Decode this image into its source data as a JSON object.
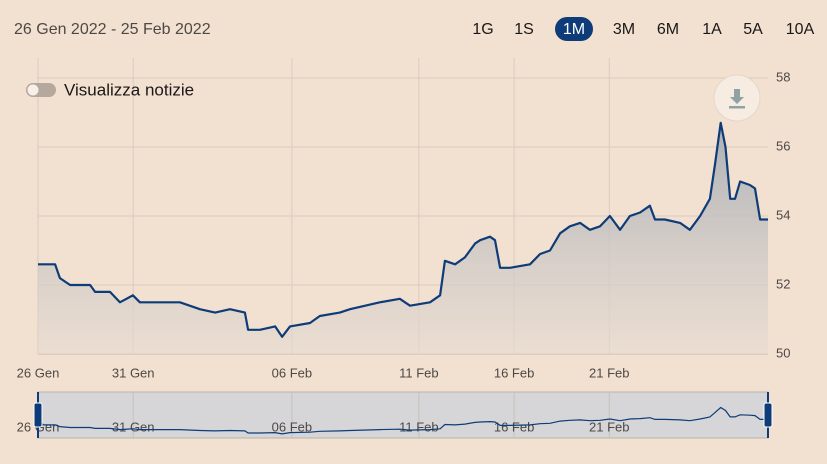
{
  "controls": {
    "date_range": "26 Gen 2022 - 25 Feb 2022",
    "ranges": [
      "1G",
      "1S",
      "1M",
      "3M",
      "6M",
      "1A",
      "5A",
      "10A"
    ],
    "news_toggle": "Visualizza notizie"
  },
  "chart_data": {
    "type": "line",
    "x": [
      0,
      0.54,
      0.69,
      1.01,
      1.64,
      1.8,
      2.27,
      2.58,
      2.99,
      3.21,
      3.84,
      4.47,
      5.1,
      5.58,
      6.05,
      6.52,
      6.62,
      6.99,
      7.47,
      7.69,
      7.94,
      8.57,
      8.88,
      9.51,
      9.83,
      10.77,
      11.4,
      11.72,
      12.35,
      12.67,
      12.82,
      13.14,
      13.45,
      13.77,
      13.93,
      14.24,
      14.4,
      14.56,
      14.87,
      15.5,
      15.82,
      16.13,
      16.45,
      16.76,
      17.08,
      17.39,
      17.71,
      18.02,
      18.34,
      18.65,
      18.97,
      19.28,
      19.44,
      19.75,
      20.23,
      20.54,
      20.86,
      21.17,
      21.33,
      21.51,
      21.66,
      21.81,
      21.96,
      22.12,
      22.43,
      22.59,
      22.75,
      22.9,
      23
    ],
    "series": [
      {
        "color": "#0d3c78",
        "values": [
          52.6,
          52.6,
          52.2,
          52.0,
          52.0,
          51.8,
          51.8,
          51.5,
          51.7,
          51.5,
          51.5,
          51.5,
          51.3,
          51.2,
          51.3,
          51.2,
          50.7,
          50.7,
          50.8,
          50.5,
          50.8,
          50.9,
          51.1,
          51.2,
          51.3,
          51.5,
          51.6,
          51.4,
          51.5,
          51.7,
          52.7,
          52.6,
          52.8,
          53.2,
          53.3,
          53.4,
          53.3,
          52.5,
          52.5,
          52.6,
          52.9,
          53.0,
          53.5,
          53.7,
          53.8,
          53.6,
          53.7,
          54.0,
          53.6,
          54.0,
          54.1,
          54.3,
          53.9,
          53.9,
          53.8,
          53.6,
          54.0,
          54.5,
          55.5,
          56.7,
          56.0,
          54.5,
          54.5,
          55.0,
          54.9,
          54.8,
          53.9,
          53.9,
          53.9
        ]
      }
    ],
    "xlim": [
      0,
      23
    ],
    "xticks": [
      {
        "value": 0,
        "label": "26 Gen"
      },
      {
        "value": 3,
        "label": "31 Gen"
      },
      {
        "value": 8,
        "label": "06 Feb"
      },
      {
        "value": 12,
        "label": "11 Feb"
      },
      {
        "value": 15,
        "label": "16 Feb"
      },
      {
        "value": 18,
        "label": "21 Feb"
      }
    ],
    "ylim": [
      50,
      58
    ],
    "yticks": [
      50,
      52,
      54,
      56,
      58
    ],
    "grid": true
  }
}
